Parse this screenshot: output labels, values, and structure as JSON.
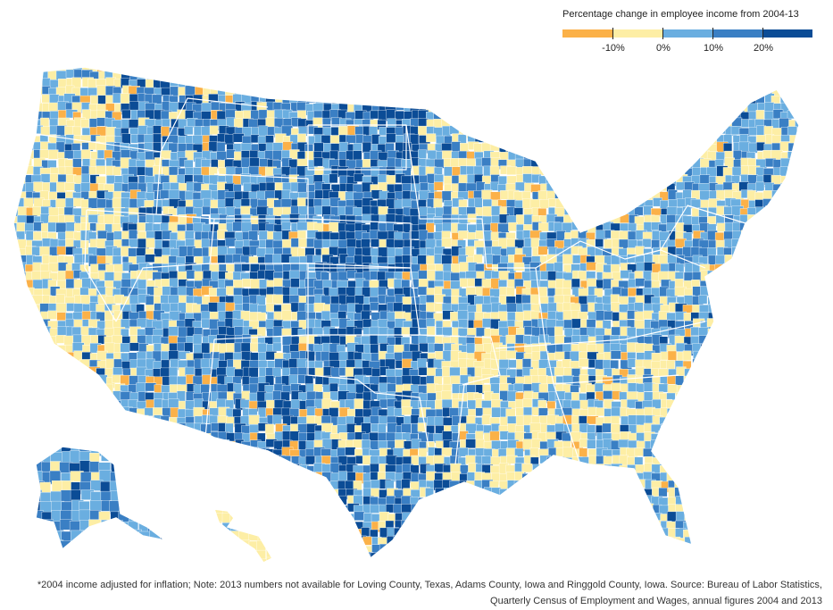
{
  "legend": {
    "title": "Percentage change in employee income from 2004-13",
    "scale": [
      {
        "label": "< -10%",
        "color": "#fbb148"
      },
      {
        "label": "-10% to 0%",
        "color": "#fdeea5"
      },
      {
        "label": "0% to 10%",
        "color": "#6aaee0"
      },
      {
        "label": "10% to 20%",
        "color": "#3a7fc4"
      },
      {
        "label": "> 20%",
        "color": "#0b4c96"
      }
    ],
    "ticks": [
      {
        "label": "-10%",
        "value": -10
      },
      {
        "label": "0%",
        "value": 0
      },
      {
        "label": "10%",
        "value": 10
      },
      {
        "label": "20%",
        "value": 20
      }
    ]
  },
  "map": {
    "regions": [
      "contiguous-us",
      "alaska",
      "hawaii"
    ],
    "region_shares": {
      "west-coast": {
        "decline": 0.55,
        "moderate": 0.35,
        "high": 0.1
      },
      "great-plains": {
        "decline": 0.05,
        "moderate": 0.3,
        "high": 0.65
      },
      "texas": {
        "decline": 0.15,
        "moderate": 0.35,
        "high": 0.5
      },
      "southeast": {
        "decline": 0.55,
        "moderate": 0.35,
        "high": 0.1
      },
      "northeast": {
        "decline": 0.3,
        "moderate": 0.6,
        "high": 0.1
      }
    }
  },
  "footnote": {
    "line1": "*2004 income adjusted for inflation; Note: 2013 numbers not available for Loving County, Texas, Adams County, Iowa and Ringgold County, Iowa. Source: Bureau of Labor Statistics,",
    "line2": "Quarterly Census of Employment and Wages, annual figures 2004 and 2013"
  }
}
